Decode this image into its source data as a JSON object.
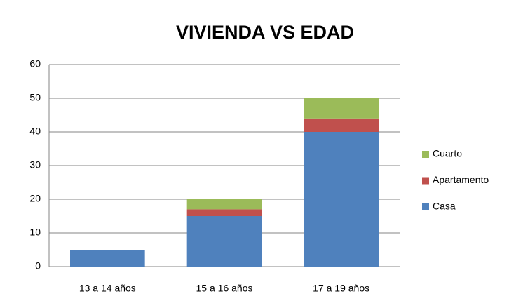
{
  "chart_data": {
    "type": "stacked_bar",
    "title": "VIVIENDA VS EDAD",
    "categories": [
      "13 a 14 años",
      "15 a 16 años",
      "17 a 19 años"
    ],
    "series": [
      {
        "name": "Casa",
        "color": "#4f81bd",
        "values": [
          5,
          15,
          40
        ]
      },
      {
        "name": "Apartamento",
        "color": "#c0504d",
        "values": [
          0,
          2,
          4
        ]
      },
      {
        "name": "Cuarto",
        "color": "#9bbb59",
        "values": [
          0,
          3,
          6
        ]
      }
    ],
    "ylim": [
      0,
      60
    ],
    "yticks": [
      0,
      10,
      20,
      30,
      40,
      50,
      60
    ],
    "grid": true,
    "legend": "right"
  }
}
